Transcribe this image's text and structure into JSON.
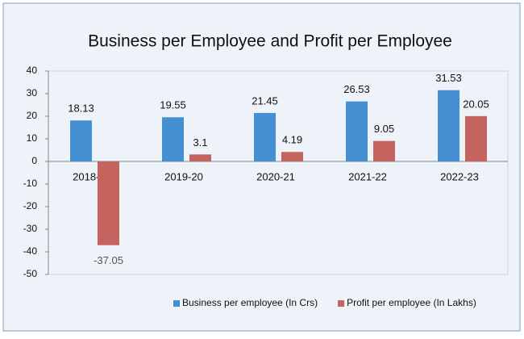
{
  "chart_data": {
    "type": "bar",
    "title": "Business per Employee and Profit per Employee",
    "categories": [
      "2018-19",
      "2019-20",
      "2020-21",
      "2021-22",
      "2022-23"
    ],
    "series": [
      {
        "name": "Business per employee (In Crs)",
        "color": "#4490d2",
        "values": [
          18.13,
          19.55,
          21.45,
          26.53,
          31.53
        ]
      },
      {
        "name": "Profit per employee (In Lakhs)",
        "color": "#c5645e",
        "values": [
          -37.05,
          3.1,
          4.19,
          9.05,
          20.05
        ]
      }
    ],
    "ylim": [
      -50,
      40
    ],
    "yticks": [
      -50,
      -40,
      -30,
      -20,
      -10,
      0,
      10,
      20,
      30,
      40
    ],
    "legend": "bottom"
  }
}
